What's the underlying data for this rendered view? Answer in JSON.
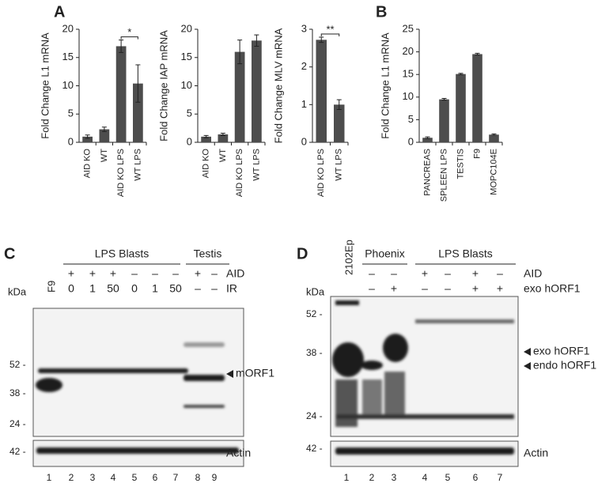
{
  "chart_data": [
    {
      "type": "bar",
      "panel": "A",
      "ylabel": "Fold Change L1 mRNA",
      "categories": [
        "AID KO",
        "WT",
        "AID KO LPS",
        "WT LPS"
      ],
      "values": [
        1.0,
        2.3,
        17,
        10.4
      ],
      "errors": [
        0.3,
        0.4,
        1.1,
        3.3
      ],
      "ylim": [
        0,
        20
      ],
      "yticks": [
        0,
        5,
        10,
        15,
        20
      ],
      "color": "#4d4d4d",
      "annotation": "*"
    },
    {
      "type": "bar",
      "ylabel": "Fold Change IAP mRNA",
      "categories": [
        "AID KO",
        "WT",
        "AID KO LPS",
        "WT LPS"
      ],
      "values": [
        1.0,
        1.4,
        16,
        18
      ],
      "errors": [
        0.2,
        0.2,
        2.1,
        1.0
      ],
      "ylim": [
        0,
        20
      ],
      "yticks": [
        0,
        5,
        10,
        15,
        20
      ],
      "color": "#4d4d4d"
    },
    {
      "type": "bar",
      "ylabel": "Fold Change MLV mRNA",
      "categories": [
        "AID KO LPS",
        "WT LPS"
      ],
      "values": [
        2.72,
        1.0
      ],
      "errors": [
        0.07,
        0.13
      ],
      "ylim": [
        0,
        3
      ],
      "yticks": [
        0,
        1,
        2,
        3
      ],
      "color": "#4d4d4d",
      "annotation": "**"
    },
    {
      "type": "bar",
      "panel": "B",
      "ylabel": "Fold Change L1 mRNA",
      "categories": [
        "PANCREAS",
        "SPLEEN LPS",
        "TESTIS",
        "F9",
        "MOPC104E"
      ],
      "values": [
        1.0,
        9.5,
        15.1,
        19.5,
        1.7
      ],
      "errors": [
        0.2,
        0.2,
        0.15,
        0.2,
        0.15
      ],
      "ylim": [
        0,
        25
      ],
      "yticks": [
        0,
        5,
        10,
        15,
        20,
        25
      ],
      "color": "#4d4d4d"
    }
  ],
  "blot_c": {
    "panel": "C",
    "groups": [
      "LPS Blasts",
      "Testis"
    ],
    "lane_header": "F9",
    "rows": [
      {
        "name": "AID",
        "cells": [
          "+",
          "+",
          "+",
          "–",
          "–",
          "–",
          "+",
          "–"
        ]
      },
      {
        "name": "IR",
        "cells": [
          "0",
          "1",
          "50",
          "0",
          "1",
          "50",
          "–",
          "–"
        ]
      }
    ],
    "kda": "kDa",
    "markers": [
      "52 -",
      "38 -",
      "24 -"
    ],
    "actin_marker": "42 -",
    "band_labels": [
      "mORF1"
    ],
    "actin_label": "Actin",
    "lanes": [
      "1",
      "2",
      "3",
      "4",
      "5",
      "6",
      "7",
      "8",
      "9"
    ]
  },
  "blot_d": {
    "panel": "D",
    "groups": [
      "Phoenix",
      "LPS Blasts"
    ],
    "lane_header": "2102Ep",
    "rows": [
      {
        "name": "AID",
        "cells": [
          "–",
          "–",
          "+",
          "–",
          "+",
          "–"
        ]
      },
      {
        "name": "exo hORF1",
        "cells": [
          "–",
          "+",
          "–",
          "–",
          "+",
          "+"
        ]
      }
    ],
    "kda": "kDa",
    "markers": [
      "52 -",
      "38 -",
      "24 -"
    ],
    "actin_marker": "42 -",
    "band_labels": [
      "exo hORF1",
      "endo hORF1"
    ],
    "actin_label": "Actin",
    "lanes": [
      "1",
      "2",
      "3",
      "4",
      "5",
      "6",
      "7"
    ]
  }
}
